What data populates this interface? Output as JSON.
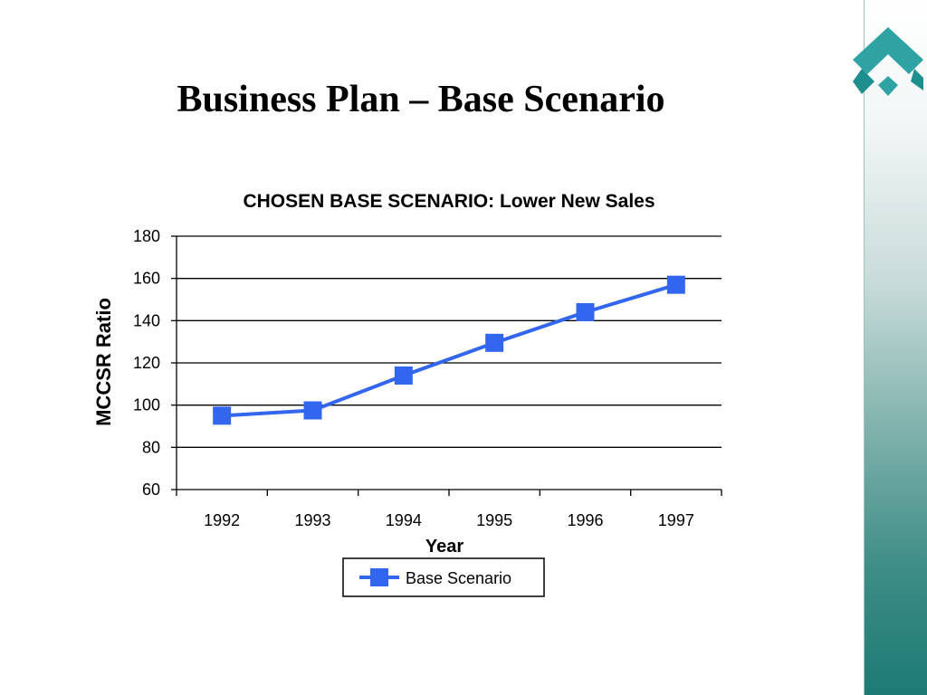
{
  "slide": {
    "title": "Business Plan – Base Scenario",
    "accent_color": "#1d7a74"
  },
  "chart_data": {
    "type": "line",
    "title": "CHOSEN BASE SCENARIO: Lower New Sales",
    "xlabel": "Year",
    "ylabel": "MCCSR Ratio",
    "categories": [
      "1992",
      "1993",
      "1994",
      "1995",
      "1996",
      "1997"
    ],
    "series": [
      {
        "name": "Base Scenario",
        "values": [
          95,
          97.5,
          114,
          129.5,
          144,
          157
        ],
        "color": "#3366ee",
        "marker": "square"
      }
    ],
    "ylim": [
      60,
      180
    ],
    "yticks": [
      60,
      80,
      100,
      120,
      140,
      160,
      180
    ],
    "grid": true,
    "legend": "bottom"
  }
}
